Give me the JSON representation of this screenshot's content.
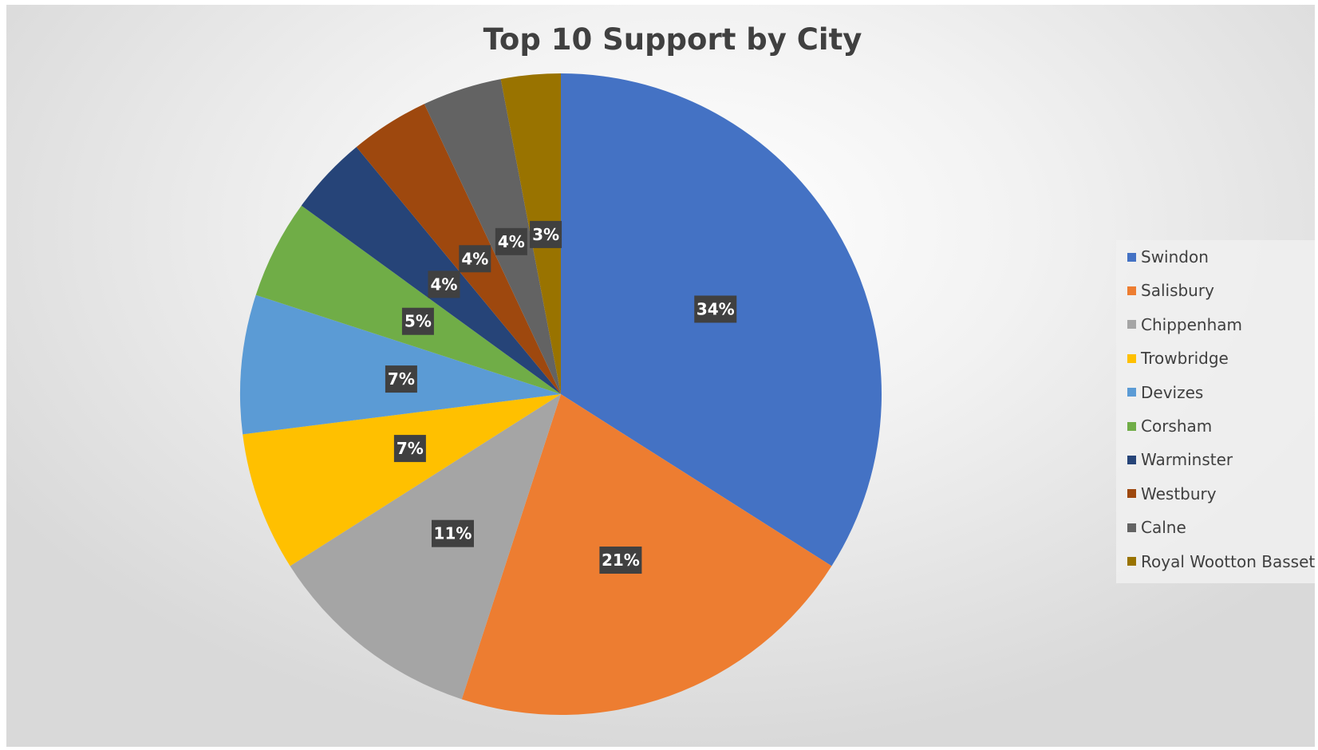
{
  "chart_data": {
    "type": "pie",
    "title": "Top 10 Support by City",
    "legend_position": "right",
    "categories": [
      "Swindon",
      "Salisbury",
      "Chippenham",
      "Trowbridge",
      "Devizes",
      "Corsham",
      "Warminster",
      "Westbury",
      "Calne",
      "Royal Wootton Bassett"
    ],
    "values": [
      34,
      21,
      11,
      7,
      7,
      5,
      4,
      4,
      4,
      3
    ],
    "labels": [
      "34%",
      "21%",
      "11%",
      "7%",
      "7%",
      "5%",
      "4%",
      "4%",
      "4%",
      "3%"
    ],
    "colors": [
      "#4472C4",
      "#ED7D31",
      "#A5A5A5",
      "#FFC000",
      "#5B9BD5",
      "#70AD47",
      "#264478",
      "#9E480E",
      "#636363",
      "#997300"
    ]
  }
}
